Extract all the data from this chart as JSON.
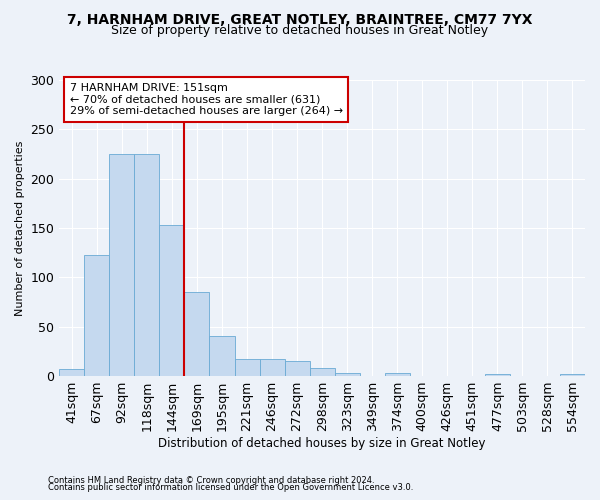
{
  "title1": "7, HARNHAM DRIVE, GREAT NOTLEY, BRAINTREE, CM77 7YX",
  "title2": "Size of property relative to detached houses in Great Notley",
  "xlabel": "Distribution of detached houses by size in Great Notley",
  "ylabel": "Number of detached properties",
  "categories": [
    "41sqm",
    "67sqm",
    "92sqm",
    "118sqm",
    "144sqm",
    "169sqm",
    "195sqm",
    "221sqm",
    "246sqm",
    "272sqm",
    "298sqm",
    "323sqm",
    "349sqm",
    "374sqm",
    "400sqm",
    "426sqm",
    "451sqm",
    "477sqm",
    "503sqm",
    "528sqm",
    "554sqm"
  ],
  "values": [
    7,
    123,
    225,
    225,
    153,
    85,
    41,
    17,
    17,
    15,
    8,
    3,
    0,
    3,
    0,
    0,
    0,
    2,
    0,
    0,
    2
  ],
  "bar_color": "#c5d9ef",
  "bar_edge_color": "#6aaad4",
  "vline_x_index": 4,
  "vline_color": "#cc0000",
  "annotation_title": "7 HARNHAM DRIVE: 151sqm",
  "annotation_line2": "← 70% of detached houses are smaller (631)",
  "annotation_line3": "29% of semi-detached houses are larger (264) →",
  "annotation_box_color": "#ffffff",
  "annotation_box_edge_color": "#cc0000",
  "ylim": [
    0,
    300
  ],
  "yticks": [
    0,
    50,
    100,
    150,
    200,
    250,
    300
  ],
  "footer1": "Contains HM Land Registry data © Crown copyright and database right 2024.",
  "footer2": "Contains public sector information licensed under the Open Government Licence v3.0.",
  "background_color": "#edf2f9",
  "grid_color": "#ffffff",
  "title1_fontsize": 10,
  "title2_fontsize": 9
}
